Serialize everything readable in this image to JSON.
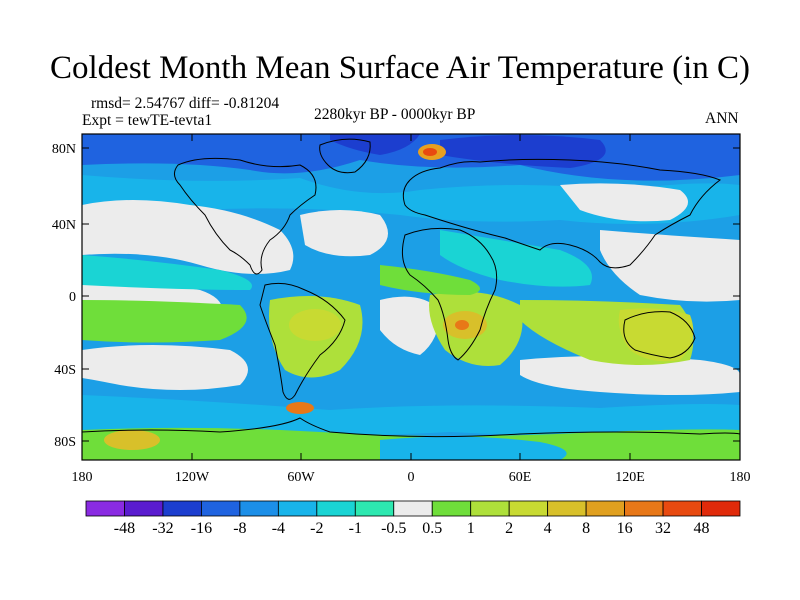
{
  "title": "Coldest Month Mean Surface Air Temperature (in C)",
  "stats": "rmsd= 2.54767  diff= -0.81204",
  "expt": "Expt = tewTE-tevta1",
  "period": "2280kyr BP - 0000kyr BP",
  "season": "ANN",
  "lat_ticks": [
    "80N",
    "40N",
    "0",
    "40S",
    "80S"
  ],
  "lon_ticks": [
    "180",
    "120W",
    "60W",
    "0",
    "60E",
    "120E",
    "180"
  ],
  "colorbar": {
    "labels": [
      "-48",
      "-32",
      "-16",
      "-8",
      "-4",
      "-2",
      "-1",
      "-0.5",
      "0.5",
      "1",
      "2",
      "4",
      "8",
      "16",
      "32",
      "48"
    ],
    "colors": [
      "#8a2be2",
      "#5a1ccf",
      "#1c3ecf",
      "#1f63e0",
      "#1c8fe8",
      "#18b4ea",
      "#1ad4d4",
      "#2de8b0",
      "#ececec",
      "#6fde3a",
      "#aee03a",
      "#c8da32",
      "#d8c02a",
      "#e0a020",
      "#e87818",
      "#e84a10",
      "#e02a0a"
    ]
  }
}
